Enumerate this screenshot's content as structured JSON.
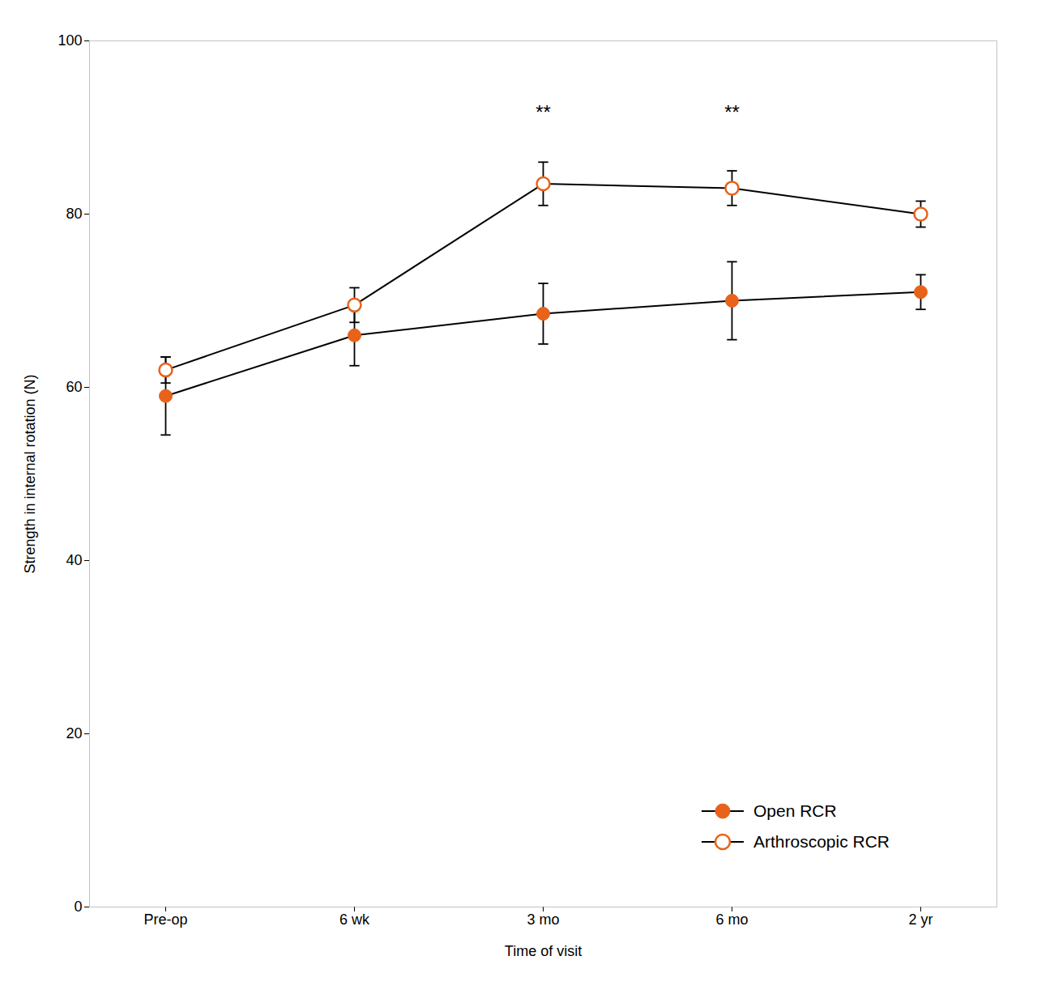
{
  "chart_data": {
    "type": "line",
    "xlabel": "Time of visit",
    "ylabel": "Strength in internal rotation (N)",
    "categories": [
      "Pre-op",
      "6 wk",
      "3 mo",
      "6 mo",
      "2 yr"
    ],
    "color": "#000000",
    "series": [
      {
        "name": "Open RCR",
        "color": "#E8621A",
        "marker": "circle",
        "values": [
          59,
          66,
          68.5,
          70,
          71
        ],
        "errors": [
          4.5,
          3.5,
          3.5,
          4.5,
          2.0
        ]
      },
      {
        "name": "Arthroscopic RCR",
        "color": "#E8621A",
        "marker": "open_circle",
        "values": [
          62,
          69.5,
          83.5,
          83,
          80
        ],
        "errors": [
          1.5,
          2.0,
          2.5,
          2.0,
          1.5
        ]
      }
    ],
    "annotations": [
      {
        "x": "3 mo",
        "y": 91,
        "text": "**"
      },
      {
        "x": "6 mo",
        "y": 91,
        "text": "**"
      }
    ],
    "ylim": [
      0,
      100
    ],
    "yticks": [
      0,
      20,
      40,
      60,
      80,
      100
    ],
    "legend": "lower right"
  }
}
